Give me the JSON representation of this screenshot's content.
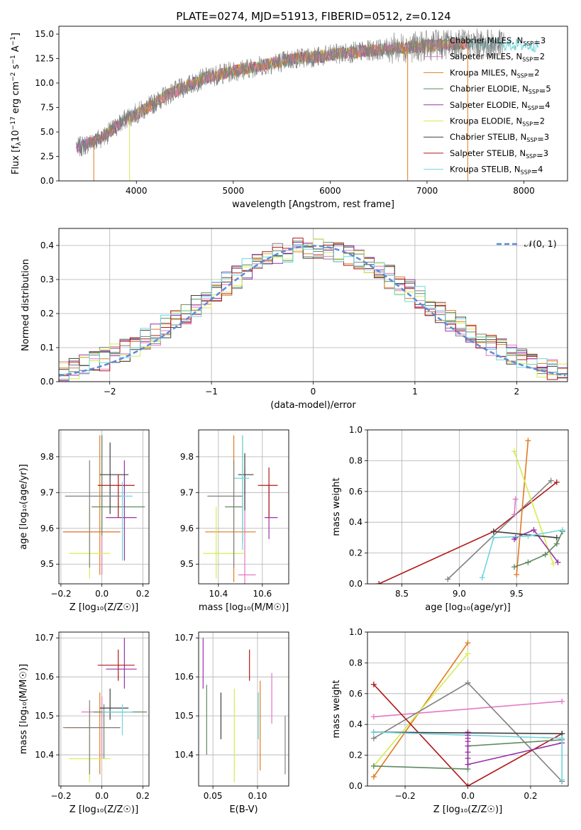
{
  "figure": {
    "title": "PLATE=0274, MJD=51913, FIBERID=0512, z=0.124"
  },
  "models": [
    {
      "name": "Chabrier MILES",
      "nssp": "3",
      "color": "#808080"
    },
    {
      "name": "Salpeter MILES",
      "nssp": "2",
      "color": "#e377c2"
    },
    {
      "name": "Kroupa MILES",
      "nssp": "2",
      "color": "#e07b21"
    },
    {
      "name": "Chabrier ELODIE",
      "nssp": "5",
      "color": "#5f8a5f"
    },
    {
      "name": "Salpeter ELODIE",
      "nssp": "4",
      "color": "#9932a8"
    },
    {
      "name": "Kroupa ELODIE",
      "nssp": "2",
      "color": "#d4ed4f"
    },
    {
      "name": "Chabrier STELIB",
      "nssp": "3",
      "color": "#3f3f3f"
    },
    {
      "name": "Salpeter STELIB",
      "nssp": "3",
      "color": "#b01818"
    },
    {
      "name": "Kroupa STELIB",
      "nssp": "4",
      "color": "#6fd6dc"
    }
  ],
  "chart_data": [
    {
      "id": "spectrum",
      "type": "line",
      "xlabel": "wavelength [Angstrom, rest frame]",
      "ylabel_main": "Flux [f",
      "ylabel_sub": "λ",
      "ylabel_rest": "10",
      "ylabel_sup1": "−17",
      "ylabel_mid": " erg cm",
      "ylabel_sup2": "−2",
      "ylabel_s": " s",
      "ylabel_sup3": "−1",
      "ylabel_a": " A",
      "ylabel_sup4": "−1",
      "ylabel_end": "]",
      "xlim": [
        3200,
        8450
      ],
      "ylim": [
        0,
        15.8
      ],
      "xticks": [
        4000,
        5000,
        6000,
        7000,
        8000
      ],
      "yticks": [
        0.0,
        2.5,
        5.0,
        7.5,
        10.0,
        12.5,
        15.0
      ],
      "ytick_labels": [
        "0.0",
        "2.5",
        "5.0",
        "7.5",
        "10.0",
        "12.5",
        "15.0"
      ],
      "continuum": {
        "wavelength": [
          3400,
          3550,
          3700,
          3900,
          4100,
          4300,
          4500,
          4700,
          4900,
          5100,
          5300,
          5500,
          5700,
          5900,
          6100,
          6300,
          6500,
          6700,
          6900,
          7100,
          7300,
          7500,
          7700,
          7900,
          8100
        ],
        "flux": [
          3.4,
          4.0,
          4.8,
          6.4,
          7.4,
          8.7,
          9.6,
          10.5,
          11.0,
          11.4,
          11.8,
          12.2,
          12.6,
          12.7,
          13.0,
          13.2,
          13.4,
          13.6,
          13.7,
          13.9,
          14.0,
          14.0,
          13.9,
          13.9,
          13.8
        ]
      },
      "grid": false,
      "legend": "top-right"
    },
    {
      "id": "residuals",
      "type": "line",
      "xlabel": "(data-model)/error",
      "ylabel": "Normed distribution",
      "xlim": [
        -2.5,
        2.5
      ],
      "ylim": [
        0,
        0.45
      ],
      "xticks": [
        -2,
        -1,
        0,
        1,
        2
      ],
      "xtick_labels": [
        "−2",
        "−1",
        "0",
        "1",
        "2"
      ],
      "yticks": [
        0.0,
        0.1,
        0.2,
        0.3,
        0.4
      ],
      "ytick_labels": [
        "0.0",
        "0.1",
        "0.2",
        "0.3",
        "0.4"
      ],
      "reference_curve": {
        "label": "𝒩(0, 1)",
        "mean": 0,
        "sigma": 1,
        "color": "#5b8bd9"
      },
      "grid": true,
      "legend": "top-right"
    },
    {
      "id": "age-vs-z",
      "type": "scatter",
      "xlabel": "Z [log₁₀(Z/Z☉)]",
      "ylabel": "age  [log₁₀(age/yr)]",
      "xlim": [
        -0.21,
        0.23
      ],
      "ylim": [
        9.445,
        9.875
      ],
      "xticks": [
        -0.2,
        0.0,
        0.2
      ],
      "xtick_labels": [
        "−0.2",
        "0.0",
        "0.2"
      ],
      "yticks": [
        9.5,
        9.6,
        9.7,
        9.8
      ],
      "ytick_labels": [
        "9.5",
        "9.6",
        "9.7",
        "9.8"
      ],
      "points": [
        {
          "x": 0.0,
          "y": 9.59,
          "xerr": [
            0.19,
            0.09
          ],
          "yerr": [
            0.12,
            0.27
          ],
          "model": 1
        },
        {
          "x": -0.01,
          "y": 9.59,
          "xerr": [
            0.18,
            0.1
          ],
          "yerr": [
            0.12,
            0.27
          ],
          "model": 2
        },
        {
          "x": 0.0,
          "y": 9.66,
          "xerr": [
            0.05,
            0.21
          ],
          "yerr": [
            0.08,
            0.2
          ],
          "model": 3
        },
        {
          "x": 0.11,
          "y": 9.63,
          "xerr": [
            0.09,
            0.06
          ],
          "yerr": [
            0.12,
            0.16
          ],
          "model": 4
        },
        {
          "x": -0.06,
          "y": 9.53,
          "xerr": [
            0.1,
            0.1
          ],
          "yerr": [
            0.07,
            0.13
          ],
          "model": 5
        },
        {
          "x": 0.04,
          "y": 9.75,
          "xerr": [
            0.05,
            0.09
          ],
          "yerr": [
            0.11,
            0.09
          ],
          "model": 6
        },
        {
          "x": 0.08,
          "y": 9.72,
          "xerr": [
            0.1,
            0.08
          ],
          "yerr": [
            0.09,
            0.03
          ],
          "model": 7
        },
        {
          "x": 0.1,
          "y": 9.69,
          "xerr": [
            0.1,
            0.05
          ],
          "yerr": [
            0.18,
            0.04
          ],
          "model": 8
        },
        {
          "x": -0.06,
          "y": 9.69,
          "xerr": [
            0.12,
            0.15
          ],
          "yerr": [
            0.2,
            0.1
          ],
          "model": 0
        }
      ],
      "grid": true
    },
    {
      "id": "age-vs-mass",
      "type": "scatter",
      "xlabel": "mass [log₁₀(M/M☉)]",
      "ylabel": "",
      "xlim": [
        10.31,
        10.72
      ],
      "ylim": [
        9.445,
        9.875
      ],
      "xticks": [
        10.4,
        10.6
      ],
      "xtick_labels": [
        "10.4",
        "10.6"
      ],
      "yticks": [
        9.5,
        9.6,
        9.7,
        9.8
      ],
      "ytick_labels": [
        "9.5",
        "9.6",
        "9.7",
        "9.8"
      ],
      "points": [
        {
          "x": 10.52,
          "y": 9.47,
          "xerr": [
            0.03,
            0.05
          ],
          "yerr": [
            0.03,
            0.3
          ],
          "model": 1
        },
        {
          "x": 10.47,
          "y": 9.59,
          "xerr": [
            0.13,
            0.1
          ],
          "yerr": [
            0.14,
            0.27
          ],
          "model": 2
        },
        {
          "x": 10.51,
          "y": 9.66,
          "xerr": [
            0.08,
            0.0
          ],
          "yerr": [
            0.1,
            0.2
          ],
          "model": 3
        },
        {
          "x": 10.63,
          "y": 9.63,
          "xerr": [
            0.02,
            0.04
          ],
          "yerr": [
            0.06,
            0.09
          ],
          "model": 4
        },
        {
          "x": 10.39,
          "y": 9.53,
          "xerr": [
            0.06,
            0.13
          ],
          "yerr": [
            0.07,
            0.13
          ],
          "model": 5
        },
        {
          "x": 10.52,
          "y": 9.75,
          "xerr": [
            0.03,
            0.04
          ],
          "yerr": [
            0.1,
            0.06
          ],
          "model": 6
        },
        {
          "x": 10.63,
          "y": 9.72,
          "xerr": [
            0.05,
            0.04
          ],
          "yerr": [
            0.09,
            0.05
          ],
          "model": 7
        },
        {
          "x": 10.51,
          "y": 9.74,
          "xerr": [
            0.04,
            0.03
          ],
          "yerr": [
            0.2,
            0.12
          ],
          "model": 8
        },
        {
          "x": 10.47,
          "y": 9.69,
          "xerr": [
            0.12,
            0.04
          ],
          "yerr": [
            0.2,
            0.1
          ],
          "model": 0
        }
      ],
      "grid": true
    },
    {
      "id": "weight-vs-age",
      "type": "line",
      "xlabel": "age  [log₁₀(age/yr)]",
      "ylabel": "mass weight",
      "xlim": [
        8.2,
        9.95
      ],
      "ylim": [
        0,
        1.0
      ],
      "xticks": [
        8.5,
        9.0,
        9.5
      ],
      "xtick_labels": [
        "8.5",
        "9.0",
        "9.5"
      ],
      "yticks": [
        0.0,
        0.2,
        0.4,
        0.6,
        0.8,
        1.0
      ],
      "ytick_labels": [
        "0.0",
        "0.2",
        "0.4",
        "0.6",
        "0.8",
        "1.0"
      ],
      "series": [
        {
          "model": 7,
          "x": [
            8.3,
            9.3,
            9.85
          ],
          "y": [
            0.0,
            0.34,
            0.66
          ]
        },
        {
          "model": 0,
          "x": [
            8.9,
            9.8
          ],
          "y": [
            0.03,
            0.67
          ]
        },
        {
          "model": 2,
          "x": [
            9.5,
            9.6
          ],
          "y": [
            0.06,
            0.93
          ]
        },
        {
          "model": 5,
          "x": [
            9.48,
            9.82
          ],
          "y": [
            0.86,
            0.13
          ]
        },
        {
          "model": 1,
          "x": [
            9.48,
            9.49
          ],
          "y": [
            0.45,
            0.55
          ]
        },
        {
          "model": 4,
          "x": [
            9.48,
            9.49,
            9.65,
            9.86
          ],
          "y": [
            0.29,
            0.3,
            0.35,
            0.14
          ]
        },
        {
          "model": 3,
          "x": [
            9.48,
            9.6,
            9.75,
            9.85,
            9.9
          ],
          "y": [
            0.11,
            0.14,
            0.19,
            0.26,
            0.34
          ]
        },
        {
          "model": 6,
          "x": [
            9.3,
            9.85
          ],
          "y": [
            0.34,
            0.3
          ]
        },
        {
          "model": 8,
          "x": [
            9.2,
            9.3,
            9.6,
            9.9
          ],
          "y": [
            0.04,
            0.3,
            0.31,
            0.35
          ]
        }
      ],
      "grid": true
    },
    {
      "id": "mass-vs-z",
      "type": "scatter",
      "xlabel": "Z [log₁₀(Z/Z☉)]",
      "ylabel": "mass [log₁₀(M/M☉)]",
      "xlim": [
        -0.21,
        0.23
      ],
      "ylim": [
        10.32,
        10.715
      ],
      "xticks": [
        -0.2,
        0.0,
        0.2
      ],
      "xtick_labels": [
        "−0.2",
        "0.0",
        "0.2"
      ],
      "yticks": [
        10.4,
        10.5,
        10.6,
        10.7
      ],
      "ytick_labels": [
        "10.4",
        "10.5",
        "10.6",
        "10.7"
      ],
      "points": [
        {
          "x": 0.0,
          "y": 10.51,
          "xerr": [
            0.1,
            0.12
          ],
          "yerr": [
            0.12,
            0.04
          ],
          "model": 1
        },
        {
          "x": -0.01,
          "y": 10.47,
          "xerr": [
            0.18,
            0.1
          ],
          "yerr": [
            0.12,
            0.09
          ],
          "model": 2
        },
        {
          "x": 0.01,
          "y": 10.51,
          "xerr": [
            0.05,
            0.21
          ],
          "yerr": [
            0.12,
            0.02
          ],
          "model": 3
        },
        {
          "x": 0.11,
          "y": 10.62,
          "xerr": [
            0.09,
            0.06
          ],
          "yerr": [
            0.05,
            0.08
          ],
          "model": 4
        },
        {
          "x": -0.06,
          "y": 10.39,
          "xerr": [
            0.1,
            0.1
          ],
          "yerr": [
            0.06,
            0.13
          ],
          "model": 5
        },
        {
          "x": 0.04,
          "y": 10.52,
          "xerr": [
            0.05,
            0.09
          ],
          "yerr": [
            0.03,
            0.05
          ],
          "model": 6
        },
        {
          "x": 0.08,
          "y": 10.63,
          "xerr": [
            0.1,
            0.08
          ],
          "yerr": [
            0.04,
            0.04
          ],
          "model": 7
        },
        {
          "x": 0.1,
          "y": 10.51,
          "xerr": [
            0.1,
            0.05
          ],
          "yerr": [
            0.06,
            0.02
          ],
          "model": 8
        },
        {
          "x": -0.06,
          "y": 10.47,
          "xerr": [
            0.12,
            0.15
          ],
          "yerr": [
            0.12,
            0.07
          ],
          "model": 0
        }
      ],
      "grid": true
    },
    {
      "id": "mass-vs-ebv",
      "type": "scatter",
      "xlabel": "E(B-V)",
      "ylabel": "",
      "xlim": [
        0.034,
        0.135
      ],
      "ylim": [
        10.32,
        10.715
      ],
      "xticks": [
        0.05,
        0.1
      ],
      "xtick_labels": [
        "0.05",
        "0.10"
      ],
      "yticks": [
        10.4,
        10.5,
        10.6,
        10.7
      ],
      "ytick_labels": [
        "10.4",
        "10.5",
        "10.6",
        "10.7"
      ],
      "points": [
        {
          "x": 0.131,
          "y": 10.43,
          "yerr": [
            0.08,
            0.07
          ],
          "model": 0
        },
        {
          "x": 0.116,
          "y": 10.54,
          "yerr": [
            0.06,
            0.07
          ],
          "model": 1
        },
        {
          "x": 0.103,
          "y": 10.47,
          "yerr": [
            0.11,
            0.12
          ],
          "model": 2
        },
        {
          "x": 0.043,
          "y": 10.49,
          "yerr": [
            0.09,
            0.09
          ],
          "model": 3
        },
        {
          "x": 0.039,
          "y": 10.64,
          "yerr": [
            0.07,
            0.06
          ],
          "model": 4
        },
        {
          "x": 0.074,
          "y": 10.45,
          "yerr": [
            0.12,
            0.12
          ],
          "model": 5
        },
        {
          "x": 0.059,
          "y": 10.5,
          "yerr": [
            0.06,
            0.06
          ],
          "model": 6
        },
        {
          "x": 0.091,
          "y": 10.63,
          "yerr": [
            0.04,
            0.04
          ],
          "model": 7
        },
        {
          "x": 0.101,
          "y": 10.5,
          "yerr": [
            0.06,
            0.06
          ],
          "model": 8
        }
      ],
      "grid": true
    },
    {
      "id": "weight-vs-z",
      "type": "line",
      "xlabel": "Z [log₁₀(Z/Z☉)]",
      "ylabel": "mass weight",
      "xlim": [
        -0.32,
        0.32
      ],
      "ylim": [
        0,
        1.0
      ],
      "xticks": [
        -0.2,
        0.0,
        0.2
      ],
      "xtick_labels": [
        "−0.2",
        "0.0",
        "0.2"
      ],
      "yticks": [
        0.0,
        0.2,
        0.4,
        0.6,
        0.8,
        1.0
      ],
      "ytick_labels": [
        "0.0",
        "0.2",
        "0.4",
        "0.6",
        "0.8",
        "1.0"
      ],
      "series": [
        {
          "model": 1,
          "x": [
            -0.3,
            0.3
          ],
          "y": [
            0.45,
            0.55
          ]
        },
        {
          "model": 2,
          "x": [
            -0.3,
            0.0
          ],
          "y": [
            0.06,
            0.93
          ]
        },
        {
          "model": 5,
          "x": [
            -0.3,
            0.0
          ],
          "y": [
            0.13,
            0.86
          ]
        },
        {
          "model": 0,
          "x": [
            -0.3,
            0.0,
            0.3
          ],
          "y": [
            0.31,
            0.67,
            0.03
          ]
        },
        {
          "model": 7,
          "x": [
            -0.3,
            0.0,
            0.3
          ],
          "y": [
            0.66,
            0.0,
            0.34
          ]
        },
        {
          "model": 3,
          "x": [
            -0.3,
            0.0,
            0.0,
            0.3,
            0.3
          ],
          "y": [
            0.13,
            0.11,
            0.26,
            0.3,
            0.34
          ]
        },
        {
          "model": 4,
          "x": [
            0.0,
            0.0,
            0.3
          ],
          "y": [
            0.35,
            0.14,
            0.28
          ]
        },
        {
          "model": 6,
          "x": [
            -0.3,
            0.3
          ],
          "y": [
            0.35,
            0.34
          ]
        },
        {
          "model": 8,
          "x": [
            -0.3,
            0.3,
            0.3
          ],
          "y": [
            0.35,
            0.31,
            0.04
          ]
        }
      ],
      "extra_ticks": {
        "x": 0.0,
        "y": [
          0.18,
          0.22,
          0.26,
          0.29,
          0.31,
          0.33
        ]
      },
      "grid": true
    }
  ]
}
